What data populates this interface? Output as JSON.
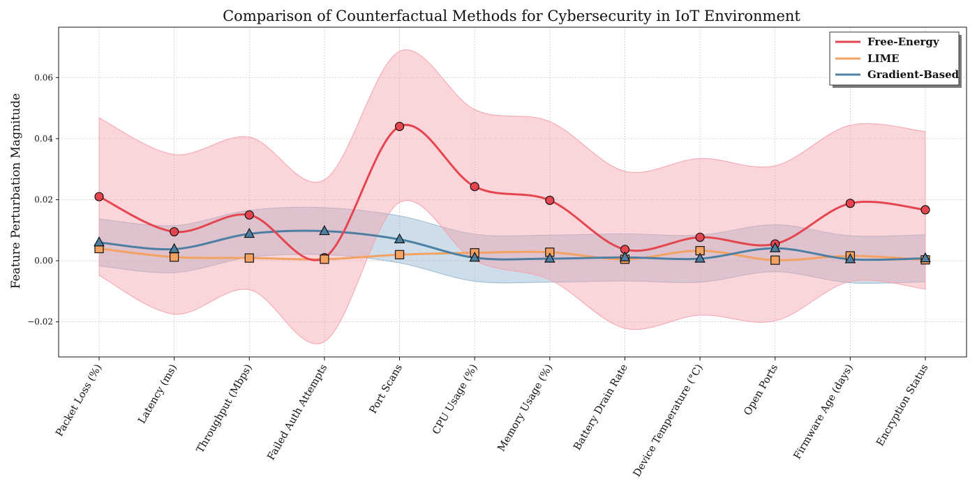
{
  "chart_data": {
    "type": "line",
    "title": "Comparison of Counterfactual Methods for Cybersecurity in IoT Environment",
    "xlabel": "",
    "ylabel": "Feature Perturbation Magnitude",
    "ylim": [
      -0.0315,
      0.0765
    ],
    "yticks": [
      -0.02,
      0.0,
      0.02,
      0.04,
      0.06
    ],
    "ytick_labels": [
      "−0.02",
      "0.00",
      "0.02",
      "0.04",
      "0.06"
    ],
    "grid": true,
    "legend_position": "top-right",
    "categories": [
      "Packet Loss (%)",
      "Latency (ms)",
      "Throughput (Mbps)",
      "Failed Auth Attempts",
      "Port Scans",
      "CPU Usage (%)",
      "Memory Usage (%)",
      "Battery Drain Rate",
      "Device Temperature (°C)",
      "Open Ports",
      "Firmware Age (days)",
      "Encryption Status"
    ],
    "series": [
      {
        "name": "Free-Energy",
        "color": "#e5454f",
        "band_color": "#f4a3ad",
        "marker": "circle",
        "values": [
          0.021,
          0.0095,
          0.015,
          0.001,
          0.044,
          0.0243,
          0.0198,
          0.0037,
          0.0077,
          0.0055,
          0.0188,
          0.0167
        ],
        "band_lower": [
          -0.0048,
          -0.0175,
          -0.0095,
          -0.0265,
          0.0191,
          0.0001,
          -0.0062,
          -0.0221,
          -0.0178,
          -0.0197,
          -0.0068,
          -0.0093
        ],
        "band_upper": [
          0.0468,
          0.0348,
          0.0405,
          0.0265,
          0.0686,
          0.0495,
          0.0456,
          0.0293,
          0.0335,
          0.0311,
          0.0444,
          0.0423
        ]
      },
      {
        "name": "LIME",
        "color": "#f4a261",
        "marker": "square",
        "values": [
          0.004,
          0.0012,
          0.0009,
          0.0005,
          0.002,
          0.0026,
          0.0028,
          0.0005,
          0.0033,
          0.0002,
          0.0016,
          0.0003
        ]
      },
      {
        "name": "Gradient-Based",
        "color": "#4d7fa3",
        "band_color": "#9bbbd4",
        "marker": "triangle",
        "values": [
          0.006,
          0.0038,
          0.0088,
          0.0097,
          0.007,
          0.001,
          0.0007,
          0.0011,
          0.0007,
          0.0041,
          0.0005,
          0.0008
        ],
        "band_lower": [
          -0.0017,
          -0.0039,
          0.0011,
          0.002,
          -0.0007,
          -0.0067,
          -0.007,
          -0.0066,
          -0.007,
          -0.0036,
          -0.0072,
          -0.0069
        ],
        "band_upper": [
          0.0137,
          0.0115,
          0.0165,
          0.0174,
          0.0147,
          0.0087,
          0.0084,
          0.0088,
          0.0084,
          0.0118,
          0.0082,
          0.0085
        ]
      }
    ]
  }
}
